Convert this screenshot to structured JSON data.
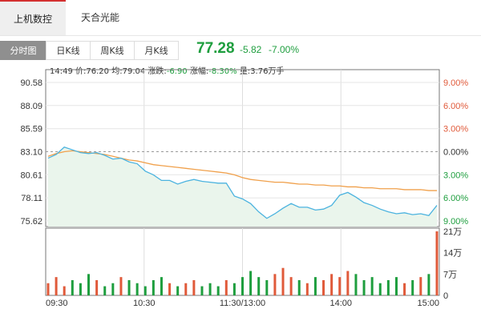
{
  "tabs_top": [
    "上机数控",
    "天合光能"
  ],
  "chart_tabs": [
    "分时图",
    "日K线",
    "周K线",
    "月K线"
  ],
  "quote": {
    "price": "77.28",
    "change": "-5.82",
    "change_pct": "-7.00%"
  },
  "info_bar": {
    "time": "14:49",
    "price_label": "价:",
    "price": "76.20",
    "avg_label": "均:",
    "avg": "79.04",
    "change_label": "涨跌:",
    "change": "-6.90",
    "pct_label": "涨幅:",
    "pct": "-8.30%",
    "vol_label": "量:",
    "vol": "3.76万手"
  },
  "colors": {
    "up": "#e05a3a",
    "down": "#1e9e3e",
    "price_line": "#4bb3df",
    "avg_line": "#f0a04b"
  },
  "chart_data": {
    "type": "line",
    "y_ticks": [
      "90.58",
      "88.09",
      "85.59",
      "83.10",
      "80.61",
      "78.11",
      "75.62"
    ],
    "pct_ticks": [
      "9.00%",
      "6.00%",
      "3.00%",
      "0.00%",
      "3.00%",
      "6.00%",
      "9.00%"
    ],
    "x_ticks": [
      "09:30",
      "10:30",
      "11:30/13:00",
      "14:00",
      "15:00"
    ],
    "vol_ticks": [
      "21万",
      "14万",
      "7万",
      "0"
    ],
    "ylim": [
      75.62,
      90.58
    ],
    "prev_close": 83.1,
    "series": [
      {
        "name": "价",
        "values": [
          82.4,
          82.8,
          83.6,
          83.3,
          83.0,
          82.9,
          83.0,
          82.7,
          82.3,
          82.4,
          82.0,
          81.8,
          81.0,
          80.6,
          80.0,
          80.0,
          79.6,
          79.9,
          80.1,
          79.9,
          79.8,
          79.7,
          79.7,
          78.3,
          78.0,
          77.5,
          76.6,
          75.9,
          76.4,
          77.0,
          77.5,
          77.1,
          77.1,
          76.8,
          76.9,
          77.3,
          78.4,
          78.7,
          78.2,
          77.6,
          77.3,
          76.9,
          76.6,
          76.4,
          76.5,
          76.3,
          76.4,
          76.2,
          77.3
        ]
      },
      {
        "name": "均",
        "values": [
          82.6,
          82.9,
          83.1,
          83.2,
          83.1,
          83.0,
          82.9,
          82.8,
          82.6,
          82.4,
          82.2,
          82.1,
          81.9,
          81.7,
          81.6,
          81.5,
          81.4,
          81.3,
          81.2,
          81.1,
          81.0,
          80.9,
          80.8,
          80.6,
          80.3,
          80.1,
          80.0,
          79.9,
          79.8,
          79.8,
          79.7,
          79.6,
          79.6,
          79.5,
          79.5,
          79.4,
          79.4,
          79.3,
          79.3,
          79.2,
          79.2,
          79.1,
          79.1,
          79.1,
          79.0,
          79.0,
          79.0,
          78.9,
          78.9
        ]
      }
    ],
    "volume": [
      4,
      6,
      3,
      5,
      4,
      7,
      5,
      3,
      4,
      6,
      5,
      4,
      3,
      5,
      6,
      4,
      3,
      4,
      5,
      3,
      4,
      3,
      5,
      4,
      6,
      8,
      6,
      5,
      7,
      9,
      6,
      5,
      4,
      6,
      5,
      7,
      6,
      8,
      7,
      5,
      6,
      4,
      5,
      6,
      4,
      5,
      6,
      7,
      21
    ]
  }
}
